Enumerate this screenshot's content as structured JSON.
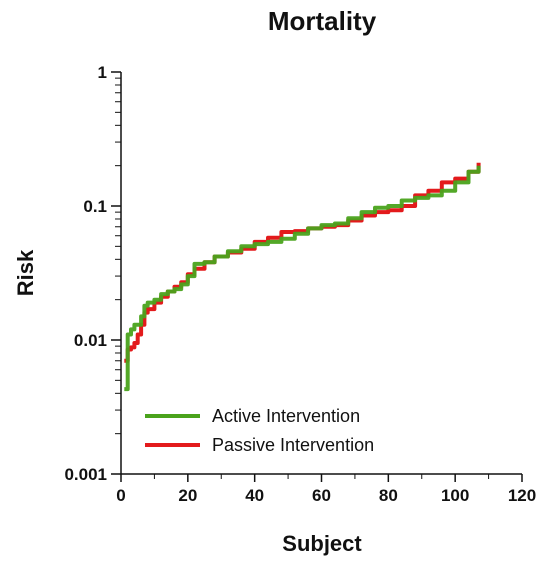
{
  "chart_data": {
    "type": "line",
    "title": "Mortality",
    "xlabel": "Subject",
    "ylabel": "Risk",
    "xlim": [
      0,
      120
    ],
    "ylim": [
      0.001,
      1
    ],
    "yscale": "log",
    "x_ticks": [
      0,
      20,
      40,
      60,
      80,
      100,
      120
    ],
    "y_ticks": [
      0.001,
      0.01,
      0.1,
      1
    ],
    "x_tick_labels": [
      "0",
      "20",
      "40",
      "60",
      "80",
      "100",
      "120"
    ],
    "y_tick_labels": [
      "0.001",
      "0.01",
      "0.1",
      "1"
    ],
    "grid": false,
    "legend_position": "bottom-left",
    "series": [
      {
        "name": "Passive Intervention",
        "color": "#e31a1c",
        "x": [
          1,
          2,
          3,
          4,
          5,
          6,
          7,
          8,
          10,
          12,
          14,
          16,
          18,
          20,
          22,
          25,
          28,
          32,
          36,
          40,
          44,
          48,
          52,
          56,
          60,
          64,
          68,
          72,
          76,
          80,
          84,
          88,
          92,
          96,
          100,
          104,
          107
        ],
        "y": [
          0.007,
          0.0085,
          0.0088,
          0.0095,
          0.011,
          0.013,
          0.016,
          0.017,
          0.019,
          0.021,
          0.023,
          0.025,
          0.027,
          0.031,
          0.034,
          0.038,
          0.042,
          0.045,
          0.048,
          0.054,
          0.058,
          0.064,
          0.065,
          0.068,
          0.07,
          0.072,
          0.078,
          0.085,
          0.09,
          0.093,
          0.1,
          0.12,
          0.13,
          0.15,
          0.16,
          0.18,
          0.21
        ]
      },
      {
        "name": "Active Intervention",
        "color": "#4aa31c",
        "x": [
          1,
          2,
          3,
          4,
          5,
          6,
          7,
          8,
          10,
          12,
          14,
          16,
          18,
          20,
          22,
          25,
          28,
          32,
          36,
          40,
          44,
          48,
          52,
          56,
          60,
          64,
          68,
          72,
          76,
          80,
          84,
          88,
          92,
          96,
          100,
          104,
          107
        ],
        "y": [
          0.0043,
          0.011,
          0.012,
          0.013,
          0.013,
          0.015,
          0.018,
          0.019,
          0.02,
          0.022,
          0.023,
          0.024,
          0.026,
          0.03,
          0.037,
          0.038,
          0.042,
          0.046,
          0.05,
          0.052,
          0.054,
          0.057,
          0.062,
          0.068,
          0.072,
          0.074,
          0.081,
          0.09,
          0.097,
          0.1,
          0.11,
          0.115,
          0.12,
          0.13,
          0.15,
          0.18,
          0.2
        ]
      }
    ]
  }
}
